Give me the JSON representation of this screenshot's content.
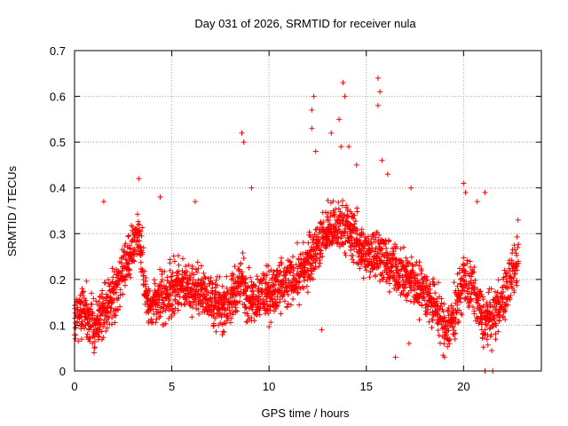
{
  "chart_data": {
    "type": "scatter",
    "title": "Day 031 of 2026, SRMTID for receiver nula",
    "xlabel": "GPS time / hours",
    "ylabel": "SRMTID / TECUs",
    "xlim": [
      0,
      24
    ],
    "ylim": [
      0,
      0.7
    ],
    "xticks": [
      0,
      5,
      10,
      15,
      20
    ],
    "xtick_labels": [
      "0",
      "5",
      "10",
      "15",
      "20"
    ],
    "yticks": [
      0,
      0.1,
      0.2,
      0.3,
      0.4,
      0.5,
      0.6,
      0.7
    ],
    "ytick_labels": [
      "0",
      "0.1",
      "0.2",
      "0.3",
      "0.4",
      "0.5",
      "0.6",
      "0.7"
    ],
    "grid": true,
    "marker": "+",
    "color": "#ff0000",
    "sample_interval_hours": 0.025,
    "series": [
      {
        "name": "SRMTID",
        "profile_x": [
          0,
          0.5,
          1,
          1.5,
          2,
          2.5,
          3,
          3.3,
          3.8,
          4.5,
          5.5,
          6.5,
          7.5,
          8,
          8.6,
          9,
          10,
          11,
          11.8,
          12.5,
          13,
          13.8,
          14.5,
          15,
          15.6,
          16,
          17,
          18,
          18.6,
          19,
          19.5,
          20,
          20.5,
          21,
          21.5,
          22,
          22.8
        ],
        "profile_y": [
          0.12,
          0.14,
          0.09,
          0.13,
          0.17,
          0.22,
          0.27,
          0.3,
          0.13,
          0.16,
          0.19,
          0.17,
          0.14,
          0.15,
          0.2,
          0.16,
          0.17,
          0.19,
          0.22,
          0.28,
          0.3,
          0.32,
          0.29,
          0.25,
          0.26,
          0.24,
          0.21,
          0.17,
          0.14,
          0.09,
          0.12,
          0.2,
          0.17,
          0.11,
          0.12,
          0.15,
          0.24
        ],
        "spread": 0.05
      }
    ],
    "outliers": [
      {
        "x": 1.5,
        "y": 0.37
      },
      {
        "x": 3.3,
        "y": 0.42
      },
      {
        "x": 4.4,
        "y": 0.38
      },
      {
        "x": 6.2,
        "y": 0.37
      },
      {
        "x": 8.6,
        "y": 0.52
      },
      {
        "x": 8.7,
        "y": 0.5
      },
      {
        "x": 9.1,
        "y": 0.4
      },
      {
        "x": 12.2,
        "y": 0.57
      },
      {
        "x": 12.2,
        "y": 0.53
      },
      {
        "x": 12.3,
        "y": 0.6
      },
      {
        "x": 12.4,
        "y": 0.48
      },
      {
        "x": 13.2,
        "y": 0.52
      },
      {
        "x": 13.6,
        "y": 0.55
      },
      {
        "x": 13.8,
        "y": 0.63
      },
      {
        "x": 13.9,
        "y": 0.6
      },
      {
        "x": 13.7,
        "y": 0.49
      },
      {
        "x": 14.1,
        "y": 0.49
      },
      {
        "x": 14.5,
        "y": 0.45
      },
      {
        "x": 15.6,
        "y": 0.64
      },
      {
        "x": 15.7,
        "y": 0.61
      },
      {
        "x": 15.6,
        "y": 0.58
      },
      {
        "x": 15.8,
        "y": 0.46
      },
      {
        "x": 16.1,
        "y": 0.43
      },
      {
        "x": 17.3,
        "y": 0.4
      },
      {
        "x": 20.0,
        "y": 0.41
      },
      {
        "x": 20.1,
        "y": 0.39
      },
      {
        "x": 20.7,
        "y": 0.37
      },
      {
        "x": 21.1,
        "y": 0.39
      },
      {
        "x": 22.8,
        "y": 0.33
      },
      {
        "x": 16.5,
        "y": 0.03
      },
      {
        "x": 17.2,
        "y": 0.06
      },
      {
        "x": 21.1,
        "y": 0.0
      },
      {
        "x": 21.5,
        "y": 0.0
      },
      {
        "x": 1.0,
        "y": 0.04
      },
      {
        "x": 12.7,
        "y": 0.09
      }
    ]
  }
}
